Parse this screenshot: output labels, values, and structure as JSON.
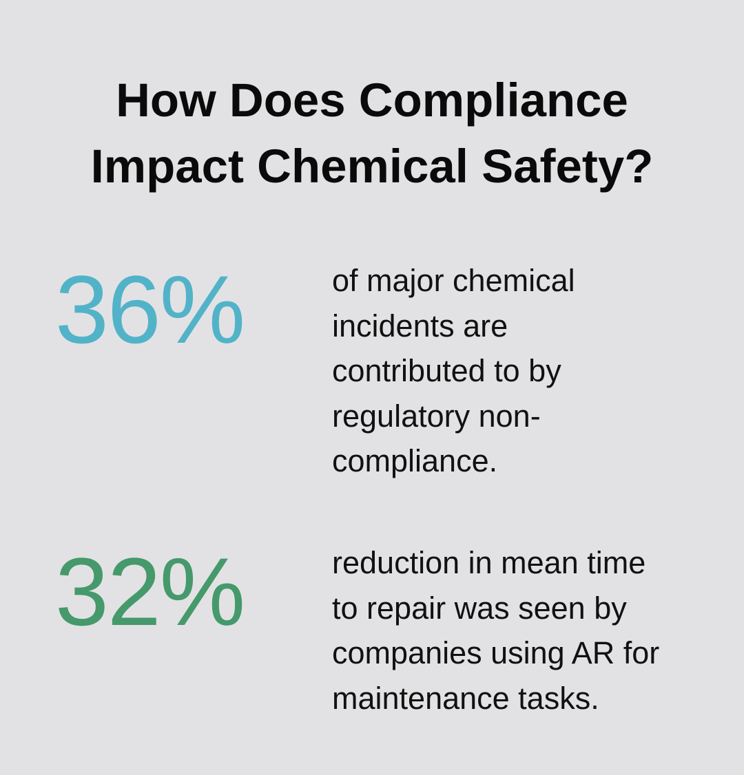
{
  "title": {
    "line1": "How Does Compliance",
    "line2": "Impact Chemical Safety?"
  },
  "stats": [
    {
      "value": "36%",
      "color": "#52b3c8",
      "description_lines": [
        "of major chemical",
        "incidents are",
        "contributed to by",
        "regulatory non-",
        "compliance."
      ]
    },
    {
      "value": "32%",
      "color": "#45996b",
      "description_lines": [
        "reduction in mean time",
        "to repair was seen by",
        "companies using AR for",
        "maintenance tasks."
      ]
    }
  ],
  "colors": {
    "background": "#e2e2e4",
    "title_text": "#0a0a0a",
    "body_text": "#111111"
  }
}
